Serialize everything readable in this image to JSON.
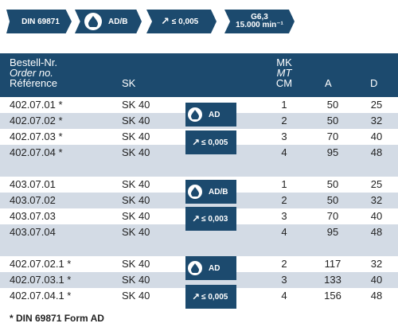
{
  "tags": {
    "din": "DIN 69871",
    "ad": "AD/B",
    "tolerance": "≤ 0,005",
    "balance_grade": "G6,3",
    "balance_speed": "15.000 min⁻¹"
  },
  "header": {
    "bestell": "Bestell-Nr.",
    "order": "Order no.",
    "reference": "Référence",
    "sk": "SK",
    "mk": "MK",
    "mt": "MT",
    "cm": "CM",
    "a": "A",
    "d": "D"
  },
  "groups": [
    {
      "rows": [
        {
          "bestell": "402.07.01 *",
          "sk": "SK 40",
          "mk": "1",
          "a": "50",
          "d": "25"
        },
        {
          "bestell": "402.07.02 *",
          "sk": "SK 40",
          "mk": "2",
          "a": "50",
          "d": "32"
        },
        {
          "bestell": "402.07.03 *",
          "sk": "SK 40",
          "mk": "3",
          "a": "70",
          "d": "40"
        },
        {
          "bestell": "402.07.04 *",
          "sk": "SK 40",
          "mk": "4",
          "a": "95",
          "d": "48"
        }
      ],
      "badge_coolant": "AD",
      "badge_tolerance": "≤ 0,005"
    },
    {
      "rows": [
        {
          "bestell": "403.07.01",
          "sk": "SK 40",
          "mk": "1",
          "a": "50",
          "d": "25"
        },
        {
          "bestell": "403.07.02",
          "sk": "SK 40",
          "mk": "2",
          "a": "50",
          "d": "32"
        },
        {
          "bestell": "403.07.03",
          "sk": "SK 40",
          "mk": "3",
          "a": "70",
          "d": "40"
        },
        {
          "bestell": "403.07.04",
          "sk": "SK 40",
          "mk": "4",
          "a": "95",
          "d": "48"
        }
      ],
      "badge_coolant": "AD/B",
      "badge_tolerance": "≤ 0,003"
    },
    {
      "rows": [
        {
          "bestell": "402.07.02.1 *",
          "sk": "SK 40",
          "mk": "2",
          "a": "117",
          "d": "32"
        },
        {
          "bestell": "402.07.03.1 *",
          "sk": "SK 40",
          "mk": "3",
          "a": "133",
          "d": "40"
        },
        {
          "bestell": "402.07.04.1 *",
          "sk": "SK 40",
          "mk": "4",
          "a": "156",
          "d": "48"
        }
      ],
      "badge_coolant": "AD",
      "badge_tolerance": "≤ 0,005"
    }
  ],
  "footnote": "* DIN 69871 Form AD",
  "colors": {
    "accent": "#1c4a6e",
    "row_shade": "#d3dbe5"
  },
  "icons": {
    "coolant": "drop-icon",
    "tolerance": "arrow-up-right-icon"
  }
}
